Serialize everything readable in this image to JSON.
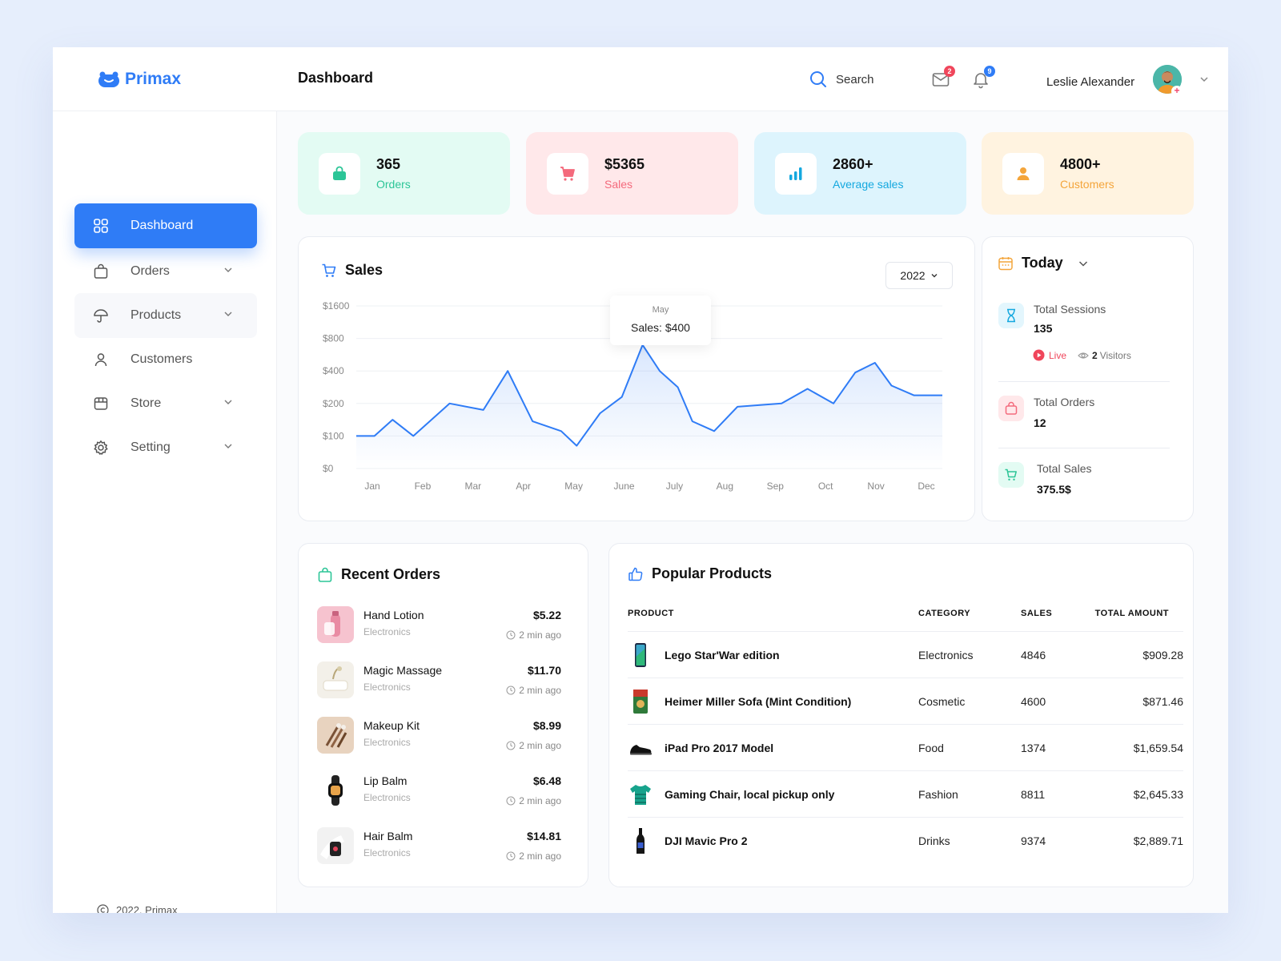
{
  "app": {
    "name": "Primax"
  },
  "header": {
    "title": "Dashboard",
    "search_label": "Search",
    "mail_count": "2",
    "notif_count": "9",
    "user_name": "Leslie Alexander"
  },
  "sidebar": {
    "items": [
      {
        "label": "Dashboard",
        "icon": "grid-icon"
      },
      {
        "label": "Orders",
        "icon": "shopping-bag-icon"
      },
      {
        "label": "Products",
        "icon": "umbrella-icon"
      },
      {
        "label": "Customers",
        "icon": "user-icon"
      },
      {
        "label": "Store",
        "icon": "store-icon"
      },
      {
        "label": "Setting",
        "icon": "gear-icon"
      }
    ],
    "copyright": "2022. Primax"
  },
  "stats": [
    {
      "value": "365",
      "label": "Orders",
      "bg": "#e3fbf3",
      "accent": "#2cc597",
      "icon": "bag-icon"
    },
    {
      "value": "$5365",
      "label": "Sales",
      "bg": "#ffe8ea",
      "accent": "#f46a7c",
      "icon": "cart-icon"
    },
    {
      "value": "2860+",
      "label": "Average sales",
      "bg": "#ddf4fd",
      "accent": "#14a8df",
      "icon": "bar-chart-icon"
    },
    {
      "value": "4800+",
      "label": "Customers",
      "bg": "#fff3e0",
      "accent": "#f4a53b",
      "icon": "user-icon"
    }
  ],
  "sales_panel": {
    "title": "Sales",
    "year": "2022",
    "tooltip": {
      "month": "May",
      "text": "Sales: $400"
    }
  },
  "chart_data": {
    "type": "area",
    "x": [
      "Jan",
      "Feb",
      "Mar",
      "Apr",
      "May",
      "June",
      "July",
      "Aug",
      "Sep",
      "Oct",
      "Nov",
      "Dec"
    ],
    "y_ticks": [
      "$1600",
      "$800",
      "$400",
      "$200",
      "$100",
      "$0"
    ],
    "y_tick_values": [
      1600,
      800,
      400,
      200,
      100,
      0
    ],
    "ylim": [
      0,
      1600
    ],
    "scale": "log-like",
    "series": [
      {
        "points": [
          {
            "x": 0.0,
            "y": 100
          },
          {
            "x": 0.35,
            "y": 100
          },
          {
            "x": 0.7,
            "y": 150
          },
          {
            "x": 1.1,
            "y": 100
          },
          {
            "x": 1.8,
            "y": 200
          },
          {
            "x": 2.45,
            "y": 180
          },
          {
            "x": 2.92,
            "y": 400
          },
          {
            "x": 3.4,
            "y": 145
          },
          {
            "x": 3.95,
            "y": 115
          },
          {
            "x": 4.25,
            "y": 70
          },
          {
            "x": 4.7,
            "y": 170
          },
          {
            "x": 5.12,
            "y": 240
          },
          {
            "x": 5.52,
            "y": 720
          },
          {
            "x": 5.85,
            "y": 400
          },
          {
            "x": 6.2,
            "y": 300
          },
          {
            "x": 6.48,
            "y": 145
          },
          {
            "x": 6.9,
            "y": 115
          },
          {
            "x": 7.35,
            "y": 190
          },
          {
            "x": 8.2,
            "y": 200
          },
          {
            "x": 8.7,
            "y": 290
          },
          {
            "x": 9.2,
            "y": 200
          },
          {
            "x": 9.62,
            "y": 390
          },
          {
            "x": 10.0,
            "y": 500
          },
          {
            "x": 10.32,
            "y": 310
          },
          {
            "x": 10.75,
            "y": 250
          },
          {
            "x": 11.3,
            "y": 250
          }
        ]
      }
    ],
    "grid": true,
    "color": "#2f7cf6"
  },
  "today_panel": {
    "title": "Today",
    "sessions_label": "Total Sessions",
    "sessions_value": "135",
    "live_label": "Live",
    "visitors_count": "2",
    "visitors_label": "Visitors",
    "orders_label": "Total Orders",
    "orders_value": "12",
    "sales_label": "Total Sales",
    "sales_value": "375.5$"
  },
  "recent_orders": {
    "title": "Recent Orders",
    "items": [
      {
        "name": "Hand Lotion",
        "category": "Electronics",
        "price": "$5.22",
        "time": "2 min ago",
        "thumb": "#f6c3cf"
      },
      {
        "name": "Magic Massage",
        "category": "Electronics",
        "price": "$11.70",
        "time": "2 min ago",
        "thumb": "#f3f0e9"
      },
      {
        "name": "Makeup Kit",
        "category": "Electronics",
        "price": "$8.99",
        "time": "2 min ago",
        "thumb": "#e8d3bf"
      },
      {
        "name": "Lip Balm",
        "category": "Electronics",
        "price": "$6.48",
        "time": "2 min ago",
        "thumb": "#ffffff"
      },
      {
        "name": "Hair Balm",
        "category": "Electronics",
        "price": "$14.81",
        "time": "2 min ago",
        "thumb": "#f2f2f2"
      }
    ]
  },
  "popular_products": {
    "title": "Popular Products",
    "columns": [
      "PRODUCT",
      "CATEGORY",
      "SALES",
      "TOTAL AMOUNT"
    ],
    "rows": [
      {
        "name": "Lego Star'War edition",
        "category": "Electronics",
        "sales": "4846",
        "amount": "$909.28"
      },
      {
        "name": "Heimer Miller Sofa (Mint Condition)",
        "category": "Cosmetic",
        "sales": "4600",
        "amount": "$871.46"
      },
      {
        "name": "iPad Pro 2017 Model",
        "category": "Food",
        "sales": "1374",
        "amount": "$1,659.54"
      },
      {
        "name": "Gaming Chair, local pickup only",
        "category": "Fashion",
        "sales": "8811",
        "amount": "$2,645.33"
      },
      {
        "name": "DJI Mavic Pro 2",
        "category": "Drinks",
        "sales": "9374",
        "amount": "$2,889.71"
      }
    ]
  }
}
